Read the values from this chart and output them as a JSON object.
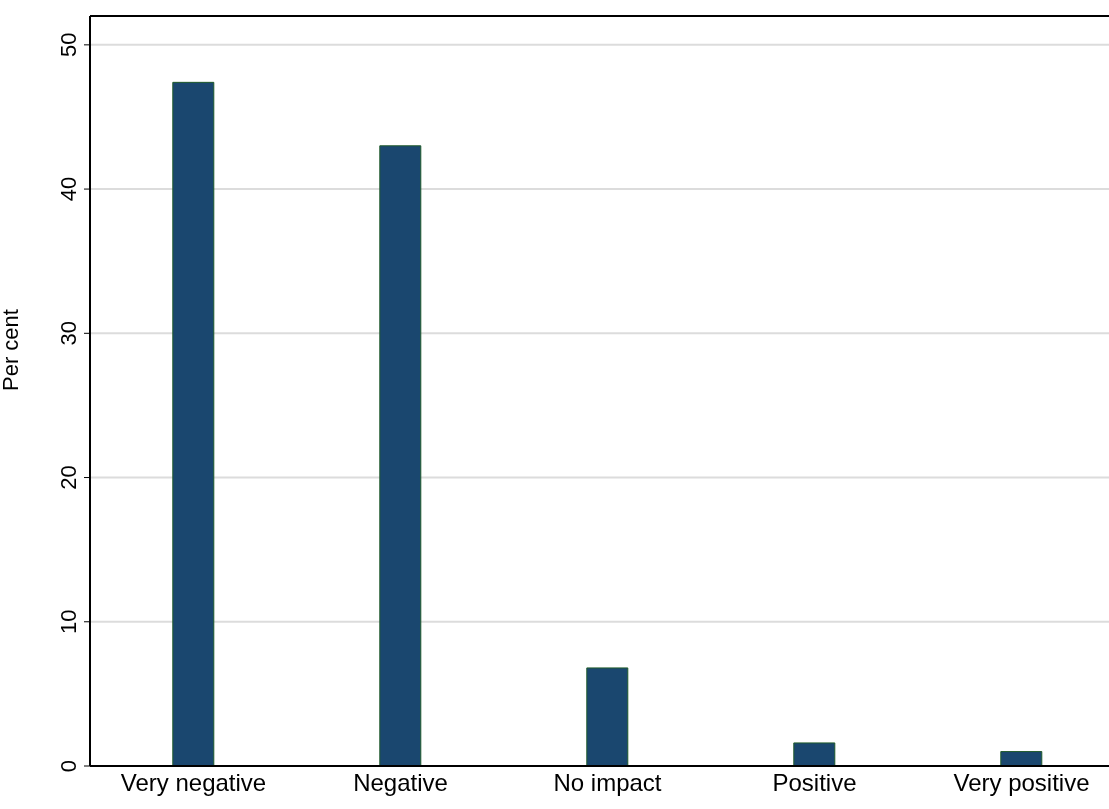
{
  "chart_data": {
    "type": "bar",
    "ylabel": "Per cent",
    "categories": [
      "Very negative",
      "Negative",
      "No impact",
      "Positive",
      "Very positive"
    ],
    "values": [
      47.4,
      43.0,
      6.8,
      1.6,
      1.0
    ],
    "color": "#1a476f",
    "ylim": [
      0,
      52
    ],
    "yticks": [
      0,
      10,
      20,
      30,
      40,
      50
    ],
    "grid": "y"
  }
}
